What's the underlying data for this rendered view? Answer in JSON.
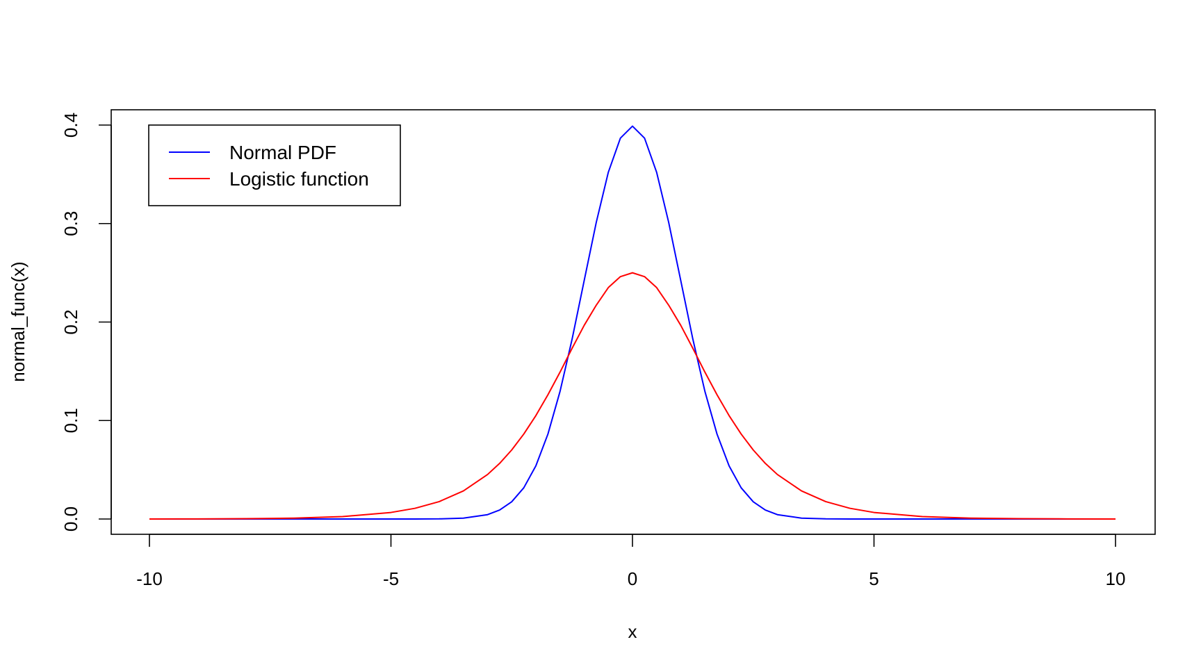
{
  "chart_data": {
    "type": "line",
    "title": "",
    "xlabel": "x",
    "ylabel": "normal_func(x)",
    "xlim": [
      -10,
      10
    ],
    "ylim": [
      0,
      0.4
    ],
    "x_ticks": [
      -10,
      -5,
      0,
      5,
      10
    ],
    "x_tick_labels": [
      "-10",
      "-5",
      "0",
      "5",
      "10"
    ],
    "y_ticks": [
      0,
      0.1,
      0.2,
      0.3,
      0.4
    ],
    "y_tick_labels": [
      "0.0",
      "0.1",
      "0.2",
      "0.3",
      "0.4"
    ],
    "grid": false,
    "legend_position": "top-left",
    "x": [
      -10,
      -9,
      -8,
      -7,
      -6,
      -5,
      -4.5,
      -4,
      -3.5,
      -3,
      -2.75,
      -2.5,
      -2.25,
      -2,
      -1.75,
      -1.5,
      -1.25,
      -1,
      -0.75,
      -0.5,
      -0.25,
      0,
      0.25,
      0.5,
      0.75,
      1,
      1.25,
      1.5,
      1.75,
      2,
      2.25,
      2.5,
      2.75,
      3,
      3.5,
      4,
      4.5,
      5,
      6,
      7,
      8,
      9,
      10
    ],
    "series": [
      {
        "name": "Normal PDF",
        "color": "#0000ff",
        "values": [
          0,
          0,
          0,
          0,
          0,
          1.5e-06,
          1.6e-05,
          0.000134,
          0.000873,
          0.00443,
          0.00909,
          0.0175,
          0.0317,
          0.054,
          0.0863,
          0.1295,
          0.1826,
          0.242,
          0.3011,
          0.3521,
          0.3867,
          0.3989,
          0.3867,
          0.3521,
          0.3011,
          0.242,
          0.1826,
          0.1295,
          0.0863,
          0.054,
          0.0317,
          0.0175,
          0.00909,
          0.00443,
          0.000873,
          0.000134,
          1.6e-05,
          1.5e-06,
          0,
          0,
          0,
          0,
          0
        ]
      },
      {
        "name": "Logistic function",
        "color": "#ff0000",
        "values": [
          4.54e-05,
          0.000123,
          0.000335,
          0.000911,
          0.00247,
          0.00665,
          0.0109,
          0.0177,
          0.0285,
          0.0452,
          0.0565,
          0.0701,
          0.0863,
          0.105,
          0.1262,
          0.1491,
          0.1733,
          0.1966,
          0.2171,
          0.235,
          0.2461,
          0.25,
          0.2461,
          0.235,
          0.2171,
          0.1966,
          0.1733,
          0.1491,
          0.1262,
          0.105,
          0.0863,
          0.0701,
          0.0565,
          0.0452,
          0.0285,
          0.0177,
          0.0109,
          0.00665,
          0.00247,
          0.000911,
          0.000335,
          0.000123,
          4.54e-05
        ]
      }
    ]
  }
}
